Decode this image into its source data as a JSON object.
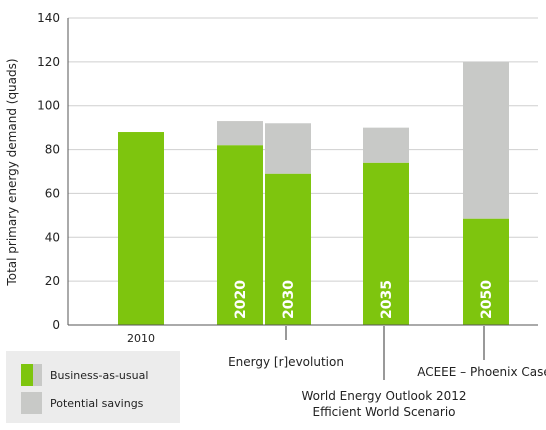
{
  "chart_data": {
    "type": "bar",
    "stacked": true,
    "ylabel": "Total primary energy demand (quads)",
    "ylim": [
      0,
      140
    ],
    "yticks": [
      0,
      20,
      40,
      60,
      80,
      100,
      120,
      140
    ],
    "grid": "horizontal",
    "colors": {
      "bau": "#7ec50e",
      "savings": "#c8c9c7",
      "grid": "#cfcfcf",
      "axis": "#555555"
    },
    "bars": [
      {
        "label": "2010",
        "label_position": "below",
        "business_as_usual": 88,
        "potential_savings": 0
      },
      {
        "label": "2020",
        "label_position": "inside",
        "business_as_usual": 82,
        "potential_savings": 11
      },
      {
        "label": "2030",
        "label_position": "inside",
        "business_as_usual": 69,
        "potential_savings": 23
      },
      {
        "label": "2035",
        "label_position": "inside",
        "business_as_usual": 74,
        "potential_savings": 16
      },
      {
        "label": "2050",
        "label_position": "inside",
        "business_as_usual": 48.5,
        "potential_savings": 71.5
      }
    ],
    "annotations": [
      {
        "lines": [
          "Energy [r]evolution"
        ],
        "bar": "2030"
      },
      {
        "lines": [
          "World Energy Outlook 2012",
          "Efficient World Scenario"
        ],
        "bar": "2035"
      },
      {
        "lines": [
          "ACEEE – Phoenix Case"
        ],
        "bar": "2050"
      }
    ],
    "legend": [
      {
        "name": "Business-as-usual",
        "swatch": "bau-savings-split"
      },
      {
        "name": "Potential savings",
        "swatch": "savings"
      }
    ]
  }
}
